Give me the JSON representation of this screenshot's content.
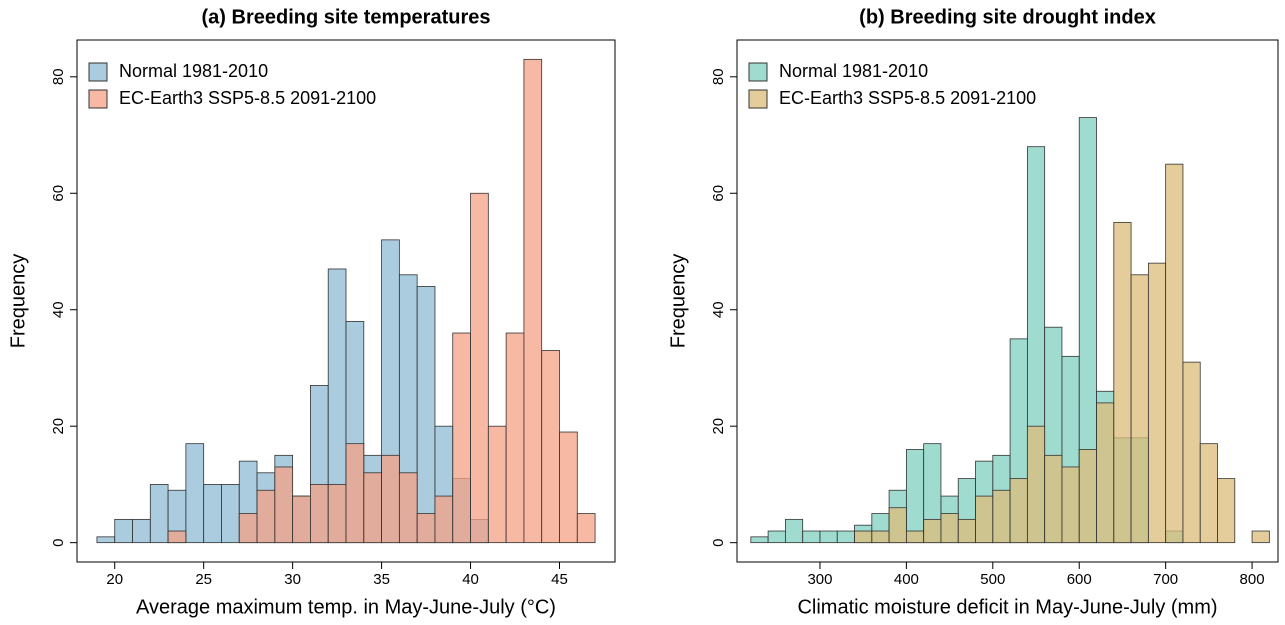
{
  "chart_data": [
    {
      "type": "histogram",
      "title": "(a) Breeding site temperatures",
      "xlabel": "Average maximum temp. in May-June-July (°C)",
      "ylabel": "Frequency",
      "bins": [
        19,
        20,
        21,
        22,
        23,
        24,
        25,
        26,
        27,
        28,
        29,
        30,
        31,
        32,
        33,
        34,
        35,
        36,
        37,
        38,
        39,
        40,
        41,
        42,
        43,
        44,
        45,
        46,
        47
      ],
      "series": [
        {
          "name": "Normal 1981-2010",
          "color": "#8fbad3",
          "values": [
            1,
            4,
            4,
            10,
            9,
            17,
            10,
            10,
            14,
            12,
            15,
            8,
            27,
            47,
            38,
            15,
            52,
            46,
            44,
            20,
            11,
            4,
            0,
            0,
            0,
            0,
            0,
            0
          ]
        },
        {
          "name": "EC-Earth3 SSP5-8.5 2091-2100",
          "color": "#f4a285",
          "values": [
            0,
            0,
            0,
            0,
            2,
            0,
            0,
            0,
            5,
            9,
            13,
            8,
            10,
            10,
            17,
            12,
            15,
            12,
            5,
            8,
            36,
            60,
            20,
            36,
            83,
            33,
            19,
            5
          ]
        }
      ],
      "alpha": 0.75,
      "legend": "top-left",
      "xlim": [
        17.88,
        48.12
      ],
      "xticks": [
        20,
        25,
        30,
        35,
        40,
        45
      ],
      "ylim": [
        -3.32,
        86.32
      ],
      "yticks": [
        0,
        20,
        40,
        60,
        80
      ]
    },
    {
      "type": "histogram",
      "title": "(b) Breeding site drought index",
      "xlabel": "Climatic moisture deficit in May-June-July (mm)",
      "ylabel": "Frequency",
      "bins": [
        220,
        240,
        260,
        280,
        300,
        320,
        340,
        360,
        380,
        400,
        420,
        440,
        460,
        480,
        500,
        520,
        540,
        560,
        580,
        600,
        620,
        640,
        660,
        680,
        700,
        720,
        740,
        760,
        780,
        800,
        820
      ],
      "series": [
        {
          "name": "Normal 1981-2010",
          "color": "#7fcfbf",
          "values": [
            1,
            2,
            4,
            2,
            2,
            2,
            3,
            5,
            9,
            16,
            17,
            8,
            11,
            14,
            15,
            35,
            68,
            37,
            32,
            73,
            26,
            18,
            18,
            0,
            2,
            0,
            0,
            0,
            0,
            0
          ]
        },
        {
          "name": "EC-Earth3 SSP5-8.5 2091-2100",
          "color": "#dcbc7a",
          "values": [
            0,
            0,
            0,
            0,
            0,
            0,
            2,
            2,
            6,
            2,
            4,
            5,
            4,
            8,
            9,
            11,
            20,
            15,
            13,
            16,
            24,
            55,
            46,
            48,
            65,
            31,
            17,
            11,
            0,
            2
          ]
        }
      ],
      "alpha": 0.75,
      "legend": "top-left",
      "xlim": [
        204,
        830
      ],
      "xticks": [
        300,
        400,
        500,
        600,
        700,
        800
      ],
      "ylim": [
        -3.32,
        86.32
      ],
      "yticks": [
        0,
        20,
        40,
        60,
        80
      ]
    }
  ]
}
